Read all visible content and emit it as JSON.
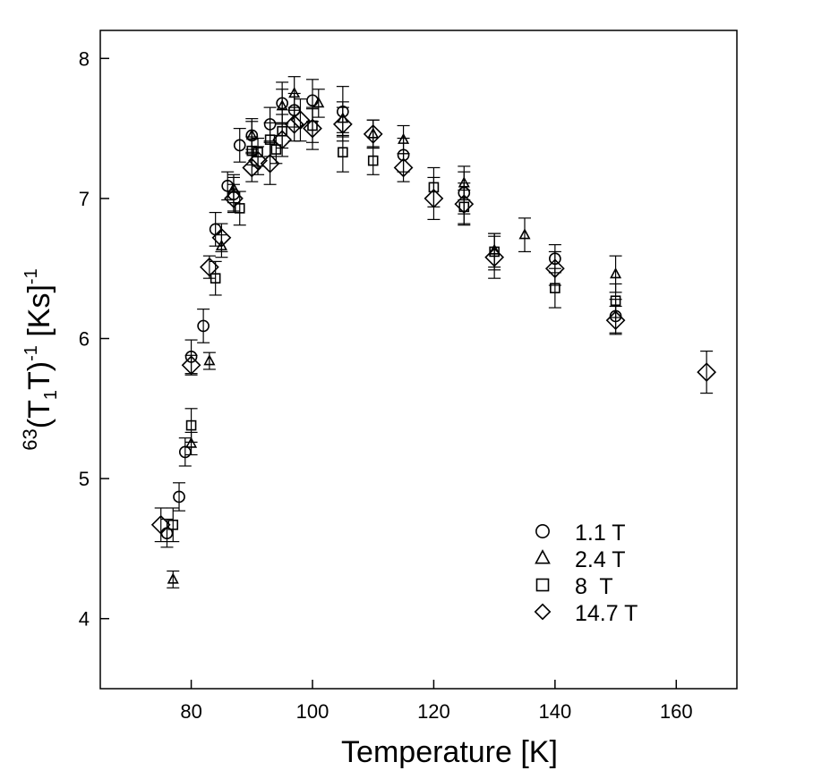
{
  "chart_data": {
    "type": "scatter",
    "xlabel": "Temperature [K]",
    "ylabel": {
      "prefix": "63",
      "main1": "(T",
      "sub": "1",
      "main2": "T)",
      "sup": "-1",
      "suffix": " [Ks]",
      "sup2": "-1"
    },
    "xlim": [
      65,
      170
    ],
    "ylim": [
      3.5,
      8.2
    ],
    "x_ticks": [
      "80",
      "100",
      "120",
      "140",
      "160"
    ],
    "y_ticks": [
      "4",
      "5",
      "6",
      "7",
      "8"
    ],
    "legend_position": "lower-right",
    "error_bars": true,
    "series": [
      {
        "name": "1.1 T",
        "marker": "circle",
        "points": [
          [
            76,
            4.61,
            0.1
          ],
          [
            78,
            4.87,
            0.1
          ],
          [
            79,
            5.19,
            0.1
          ],
          [
            80,
            5.87,
            0.12
          ],
          [
            82,
            6.09,
            0.12
          ],
          [
            84,
            6.78,
            0.12
          ],
          [
            86,
            7.09,
            0.1
          ],
          [
            87,
            7.03,
            0.12
          ],
          [
            88,
            7.38,
            0.12
          ],
          [
            90,
            7.45,
            0.12
          ],
          [
            93,
            7.53,
            0.12
          ],
          [
            95,
            7.68,
            0.15
          ],
          [
            97,
            7.63,
            0.12
          ],
          [
            100,
            7.7,
            0.15
          ],
          [
            105,
            7.62,
            0.18
          ],
          [
            115,
            7.31,
            0.12
          ],
          [
            125,
            7.04,
            0.15
          ],
          [
            140,
            6.57,
            0.1
          ],
          [
            150,
            6.16,
            0.12
          ]
        ]
      },
      {
        "name": "2.4 T",
        "marker": "triangle",
        "points": [
          [
            77,
            4.28,
            0.06
          ],
          [
            80,
            5.25,
            0.08
          ],
          [
            83,
            5.84,
            0.06
          ],
          [
            85,
            6.66,
            0.08
          ],
          [
            87,
            7.07,
            0.1
          ],
          [
            90,
            7.45,
            0.1
          ],
          [
            95,
            7.66,
            0.12
          ],
          [
            97,
            7.75,
            0.12
          ],
          [
            101,
            7.68,
            0.1
          ],
          [
            105,
            7.57,
            0.12
          ],
          [
            110,
            7.46,
            0.1
          ],
          [
            115,
            7.42,
            0.1
          ],
          [
            125,
            7.11,
            0.12
          ],
          [
            130,
            6.63,
            0.12
          ],
          [
            135,
            6.74,
            0.12
          ],
          [
            150,
            6.46,
            0.13
          ]
        ]
      },
      {
        "name": "8  T",
        "marker": "square",
        "points": [
          [
            77,
            4.67,
            0.12
          ],
          [
            80,
            5.38,
            0.12
          ],
          [
            84,
            6.43,
            0.12
          ],
          [
            88,
            6.93,
            0.12
          ],
          [
            90,
            7.34,
            0.1
          ],
          [
            91,
            7.33,
            0.1
          ],
          [
            93,
            7.42,
            0.12
          ],
          [
            94,
            7.35,
            0.1
          ],
          [
            95,
            7.48,
            0.12
          ],
          [
            100,
            7.52,
            0.12
          ],
          [
            105,
            7.33,
            0.14
          ],
          [
            110,
            7.27,
            0.1
          ],
          [
            120,
            7.08,
            0.14
          ],
          [
            125,
            6.94,
            0.12
          ],
          [
            130,
            6.62,
            0.13
          ],
          [
            140,
            6.36,
            0.14
          ],
          [
            150,
            6.27,
            0.12
          ]
        ]
      },
      {
        "name": "14.7 T",
        "marker": "diamond",
        "points": [
          [
            75,
            4.67,
            0.12
          ],
          [
            80,
            5.81,
            0.07
          ],
          [
            83,
            6.51,
            0.08
          ],
          [
            85,
            6.72,
            0.1
          ],
          [
            87,
            7.0,
            0.1
          ],
          [
            90,
            7.22,
            0.1
          ],
          [
            91,
            7.27,
            0.1
          ],
          [
            93,
            7.25,
            0.15
          ],
          [
            95,
            7.42,
            0.12
          ],
          [
            97,
            7.53,
            0.12
          ],
          [
            98,
            7.56,
            0.15
          ],
          [
            100,
            7.5,
            0.15
          ],
          [
            105,
            7.53,
            0.12
          ],
          [
            110,
            7.46,
            0.1
          ],
          [
            115,
            7.22,
            0.1
          ],
          [
            120,
            7.0,
            0.15
          ],
          [
            125,
            6.96,
            0.15
          ],
          [
            130,
            6.58,
            0.15
          ],
          [
            140,
            6.5,
            0.12
          ],
          [
            150,
            6.13,
            0.1
          ],
          [
            165,
            5.76,
            0.15
          ]
        ]
      }
    ]
  }
}
